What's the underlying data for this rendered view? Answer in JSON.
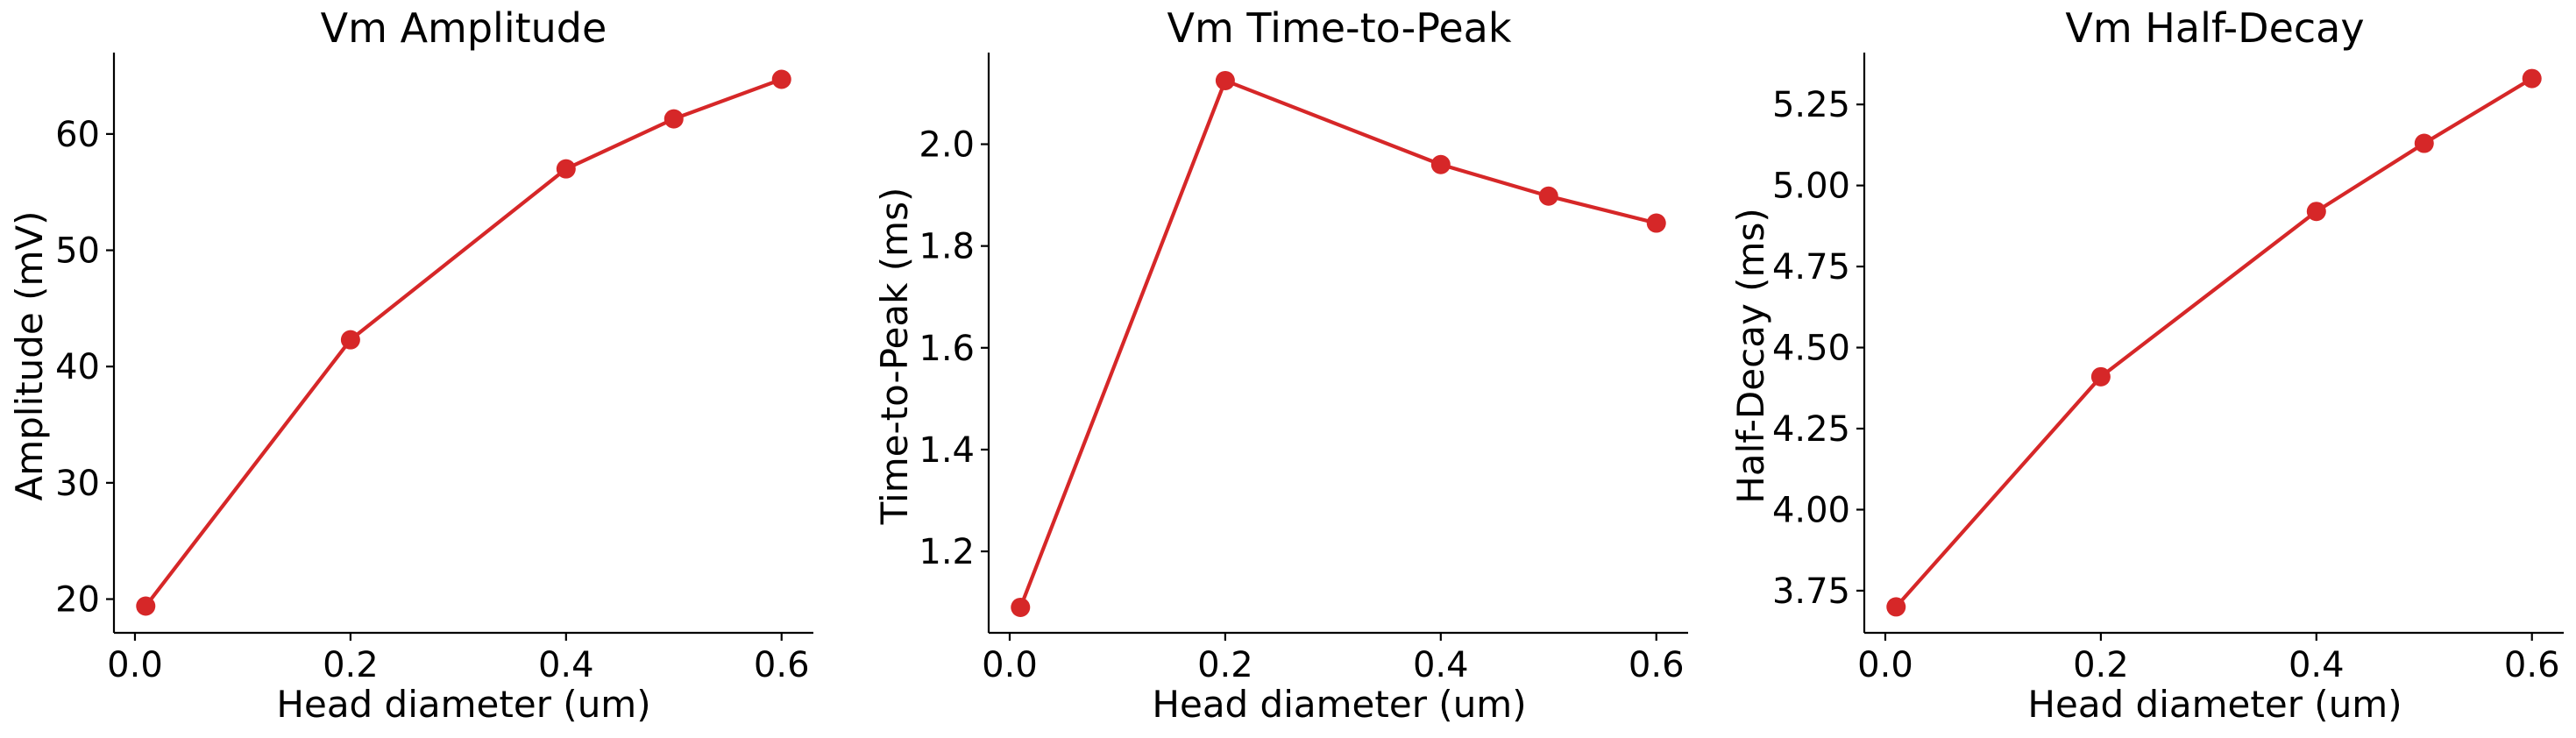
{
  "chart_data": [
    {
      "type": "line",
      "title": "Vm Amplitude",
      "xlabel": "Head diameter (um)",
      "ylabel": "Amplitude (mV)",
      "x": [
        0.01,
        0.2,
        0.4,
        0.5,
        0.6
      ],
      "series": [
        {
          "values": [
            19.4,
            42.3,
            57.0,
            61.3,
            64.7
          ]
        }
      ],
      "xlim": [
        -0.0195,
        0.6295
      ],
      "ylim": [
        17.1,
        67.0
      ],
      "xticks": [
        0.0,
        0.2,
        0.4,
        0.6
      ],
      "xtick_labels": [
        "0.0",
        "0.2",
        "0.4",
        "0.6"
      ],
      "yticks": [
        20,
        30,
        40,
        50,
        60
      ],
      "ytick_labels": [
        "20",
        "30",
        "40",
        "50",
        "60"
      ],
      "color": "#d62728",
      "marker": "circle",
      "grid": false
    },
    {
      "type": "line",
      "title": "Vm Time-to-Peak",
      "xlabel": "Head diameter (um)",
      "ylabel": "Time-to-Peak (ms)",
      "x": [
        0.01,
        0.2,
        0.4,
        0.5,
        0.6
      ],
      "series": [
        {
          "values": [
            1.09,
            2.125,
            1.96,
            1.898,
            1.845
          ]
        }
      ],
      "xlim": [
        -0.0195,
        0.6295
      ],
      "ylim": [
        1.04,
        2.18
      ],
      "xticks": [
        0.0,
        0.2,
        0.4,
        0.6
      ],
      "xtick_labels": [
        "0.0",
        "0.2",
        "0.4",
        "0.6"
      ],
      "yticks": [
        1.2,
        1.4,
        1.6,
        1.8,
        2.0
      ],
      "ytick_labels": [
        "1.2",
        "1.4",
        "1.6",
        "1.8",
        "2.0"
      ],
      "color": "#d62728",
      "marker": "circle",
      "grid": false
    },
    {
      "type": "line",
      "title": "Vm Half-Decay",
      "xlabel": "Head diameter (um)",
      "ylabel": "Half-Decay (ms)",
      "x": [
        0.01,
        0.2,
        0.4,
        0.5,
        0.6
      ],
      "series": [
        {
          "values": [
            3.7,
            4.41,
            4.92,
            5.13,
            5.33
          ]
        }
      ],
      "xlim": [
        -0.0195,
        0.6295
      ],
      "ylim": [
        3.62,
        5.41
      ],
      "xticks": [
        0.0,
        0.2,
        0.4,
        0.6
      ],
      "xtick_labels": [
        "0.0",
        "0.2",
        "0.4",
        "0.6"
      ],
      "yticks": [
        3.75,
        4.0,
        4.25,
        4.5,
        4.75,
        5.0,
        5.25
      ],
      "ytick_labels": [
        "3.75",
        "4.00",
        "4.25",
        "4.50",
        "4.75",
        "5.00",
        "5.25"
      ],
      "color": "#d62728",
      "marker": "circle",
      "grid": false
    }
  ]
}
